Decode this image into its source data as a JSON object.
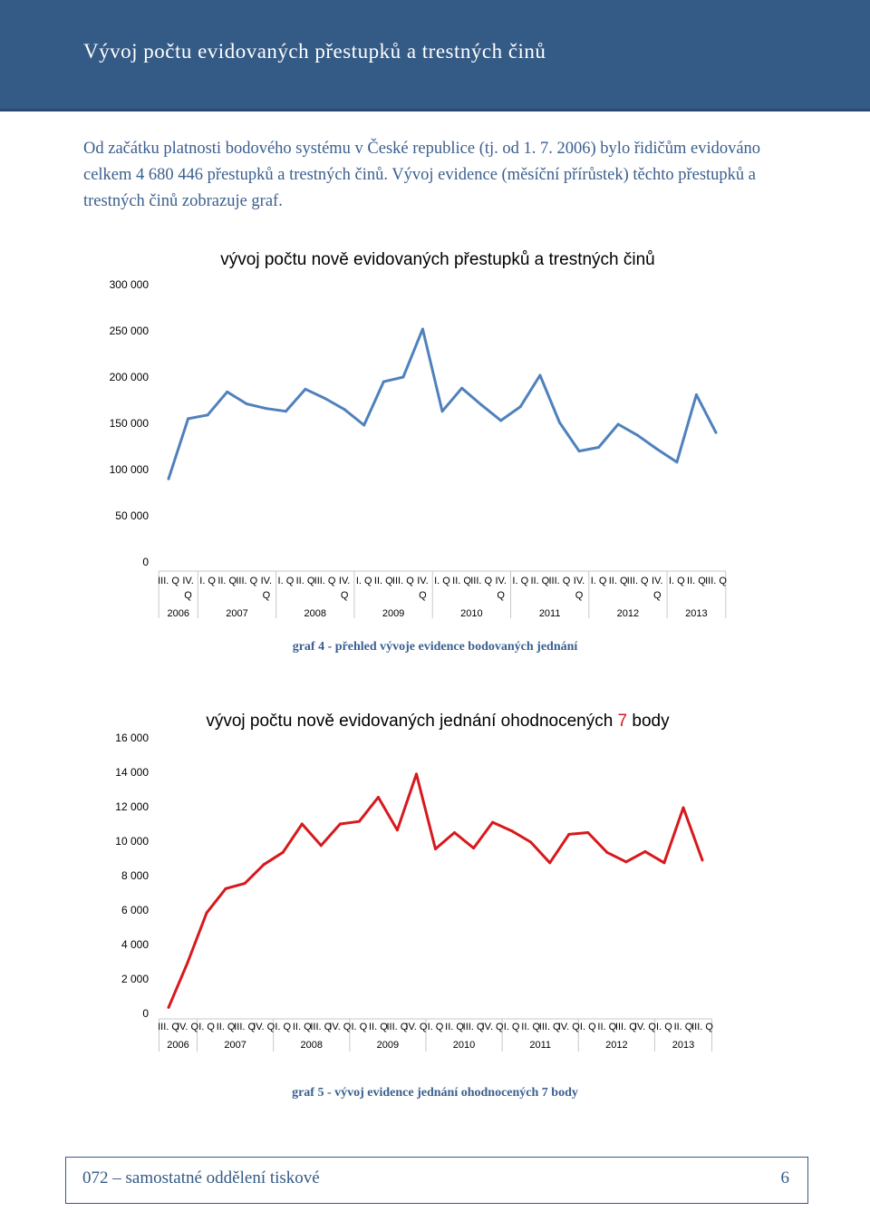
{
  "header": {
    "title": "Vývoj počtu evidovaných přestupků a trestných činů"
  },
  "intro": {
    "text": "Od začátku platnosti bodového systému v České republice (tj. od 1. 7. 2006) bylo řidičům evidováno celkem 4 680 446 přestupků a trestných činů. Vývoj evidence (měsíční přírůstek) těchto přestupků a trestných činů zobrazuje graf."
  },
  "chart_data": [
    {
      "type": "line",
      "title": "vývoj počtu nově evidovaných přestupků a trestných činů",
      "color": "#4f81bd",
      "ylim": [
        0,
        300000
      ],
      "yticks": [
        "0",
        "50 000",
        "100 000",
        "150 000",
        "200 000",
        "250 000",
        "300 000"
      ],
      "categories": [
        "III. Q",
        "IV. Q",
        "I. Q",
        "II. Q",
        "III. Q",
        "IV. Q",
        "I. Q",
        "II. Q",
        "III. Q",
        "IV. Q",
        "I. Q",
        "II. Q",
        "III. Q",
        "IV. Q",
        "I. Q",
        "II. Q",
        "III. Q",
        "IV. Q",
        "I. Q",
        "II. Q",
        "III. Q",
        "IV. Q",
        "I. Q",
        "II. Q",
        "III. Q",
        "IV. Q",
        "I. Q",
        "II. Q",
        "III. Q"
      ],
      "years": [
        "2006",
        "2007",
        "2008",
        "2009",
        "2010",
        "2011",
        "2012",
        "2013"
      ],
      "values": [
        90000,
        155000,
        159000,
        184000,
        171000,
        166000,
        163000,
        187000,
        177000,
        165000,
        148000,
        195000,
        200000,
        252000,
        163000,
        188000,
        170000,
        153000,
        168000,
        202000,
        151000,
        120000,
        124000,
        149000,
        137000,
        122000,
        108000,
        181000,
        140000
      ],
      "caption": "graf 4 - přehled vývoje evidence bodovaných jednání"
    },
    {
      "type": "line",
      "title": "vývoj počtu nově evidovaných jednání ohodnocených",
      "title_highlight": "7",
      "title_suffix": "body",
      "color": "#d7191c",
      "ylim": [
        0,
        16000
      ],
      "yticks": [
        "0",
        "2 000",
        "4 000",
        "6 000",
        "8 000",
        "10 000",
        "12 000",
        "14 000",
        "16 000"
      ],
      "categories": [
        "III. Q",
        "IV. Q",
        "I. Q",
        "II. Q",
        "III. Q",
        "IV. Q",
        "I. Q",
        "II. Q",
        "III. Q",
        "IV. Q",
        "I. Q",
        "II. Q",
        "III. Q",
        "IV. Q",
        "I. Q",
        "II. Q",
        "III. Q",
        "IV. Q",
        "I. Q",
        "II. Q",
        "III. Q",
        "IV. Q",
        "I. Q",
        "II. Q",
        "III. Q",
        "IV. Q",
        "I. Q",
        "II. Q",
        "III. Q"
      ],
      "years": [
        "2006",
        "2007",
        "2008",
        "2009",
        "2010",
        "2011",
        "2012",
        "2013"
      ],
      "values": [
        350,
        2950,
        5850,
        7250,
        7550,
        8650,
        9350,
        11000,
        9750,
        11000,
        11150,
        12550,
        10650,
        13900,
        9550,
        10500,
        9600,
        11100,
        10600,
        9950,
        8750,
        10400,
        10500,
        9350,
        8800,
        9400,
        8750,
        11950,
        8900
      ],
      "caption": "graf 5 - vývoj evidence jednání ohodnocených 7 body"
    }
  ],
  "footer": {
    "text": "072 – samostatné oddělení tiskové",
    "page": "6"
  }
}
